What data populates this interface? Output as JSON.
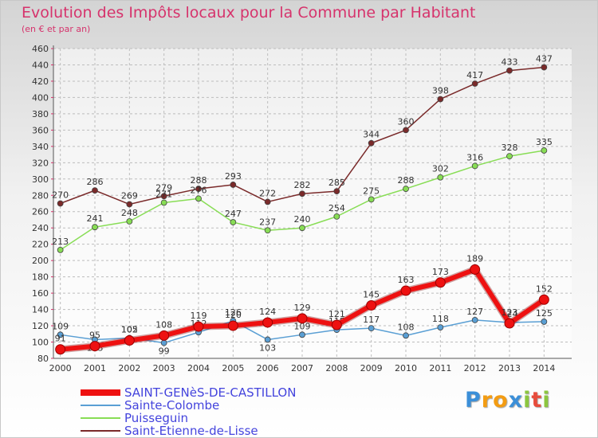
{
  "chart_data": {
    "type": "line",
    "title": "Evolution des Impôts locaux pour la Commune par Habitant",
    "subtitle": "(en € et par an)",
    "x": [
      "2000",
      "2001",
      "2002",
      "2003",
      "2004",
      "2005",
      "2006",
      "2007",
      "2008",
      "2009",
      "2010",
      "2011",
      "2012",
      "2013",
      "2014"
    ],
    "ylim": [
      80,
      460
    ],
    "yticks": [
      80,
      100,
      120,
      140,
      160,
      180,
      200,
      220,
      240,
      260,
      280,
      300,
      320,
      340,
      360,
      380,
      400,
      420,
      440,
      460
    ],
    "grid": true,
    "legend_position": "bottom-left",
    "series": [
      {
        "name": "SAINT-GENèS-DE-CASTILLON",
        "color": "#ee1111",
        "values": [
          91,
          95,
          102,
          108,
          119,
          120,
          124,
          129,
          121,
          145,
          163,
          173,
          189,
          123,
          152
        ]
      },
      {
        "name": "Sainte-Colombe",
        "color": "#5a9fd4",
        "values": [
          109,
          103,
          105,
          99,
          112,
          126,
          103,
          109,
          115,
          117,
          108,
          118,
          127,
          124,
          125
        ]
      },
      {
        "name": "Puisseguin",
        "color": "#88dd55",
        "values": [
          213,
          241,
          248,
          271,
          276,
          247,
          237,
          240,
          254,
          275,
          288,
          302,
          316,
          328,
          335
        ]
      },
      {
        "name": "Saint-Etienne-de-Lisse",
        "color": "#7a2a2a",
        "values": [
          270,
          286,
          269,
          279,
          288,
          293,
          272,
          282,
          285,
          344,
          360,
          398,
          417,
          433,
          437
        ]
      }
    ]
  },
  "brand": {
    "letters": [
      "P",
      "r",
      "o",
      "x",
      "i",
      "t",
      "i"
    ],
    "colors": [
      "#3b8fd8",
      "#f39c12",
      "#f39c12",
      "#3b8fd8",
      "#8cc63f",
      "#e74c3c",
      "#8cc63f"
    ]
  }
}
